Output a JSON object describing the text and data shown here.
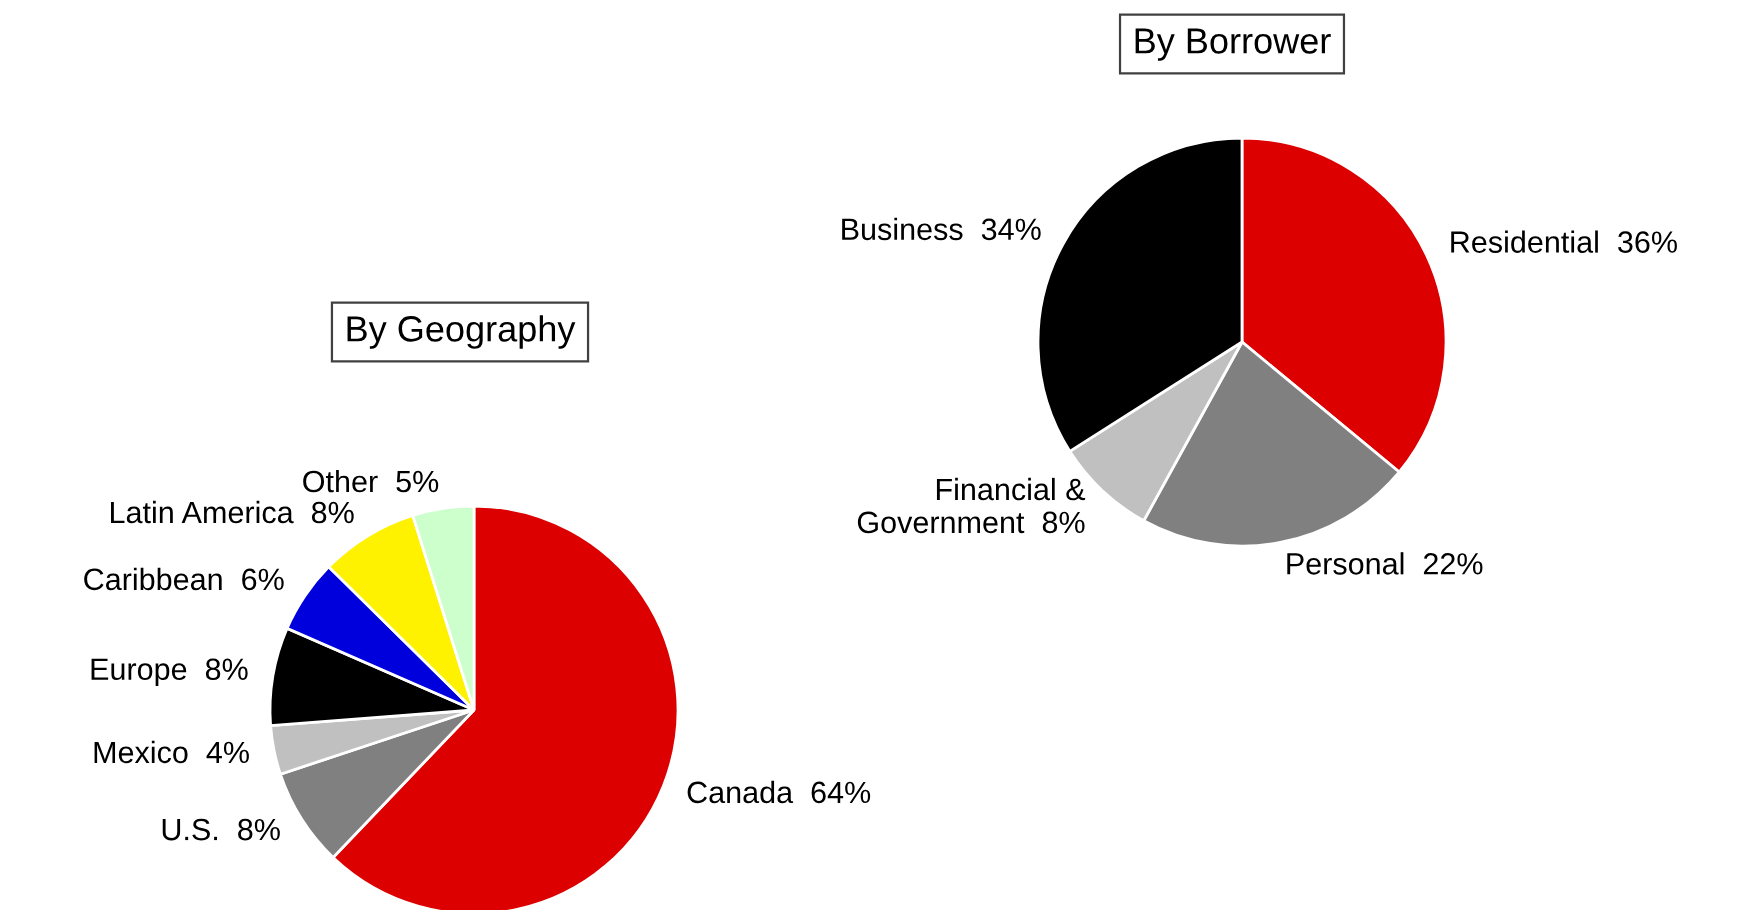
{
  "chart_data": [
    {
      "type": "pie",
      "title": "By Geography",
      "categories": [
        "Canada",
        "U.S.",
        "Mexico",
        "Europe",
        "Caribbean",
        "Latin America",
        "Other"
      ],
      "values": [
        64,
        8,
        4,
        8,
        6,
        8,
        5
      ],
      "value_labels": [
        "64%",
        "8%",
        "4%",
        "8%",
        "6%",
        "8%",
        "5%"
      ],
      "colors": [
        "#dd0000",
        "#808080",
        "#c0c0c0",
        "#000000",
        "#0000dd",
        "#fff200",
        "#ccffcc"
      ],
      "legend": false
    },
    {
      "type": "pie",
      "title": "By Borrower",
      "categories": [
        "Residential",
        "Personal",
        "Financial &\nGovernment",
        "Business"
      ],
      "values": [
        36,
        22,
        8,
        34
      ],
      "value_labels": [
        "36%",
        "22%",
        "8%",
        "34%"
      ],
      "colors": [
        "#dd0000",
        "#808080",
        "#c0c0c0",
        "#000000"
      ],
      "legend": false
    }
  ]
}
